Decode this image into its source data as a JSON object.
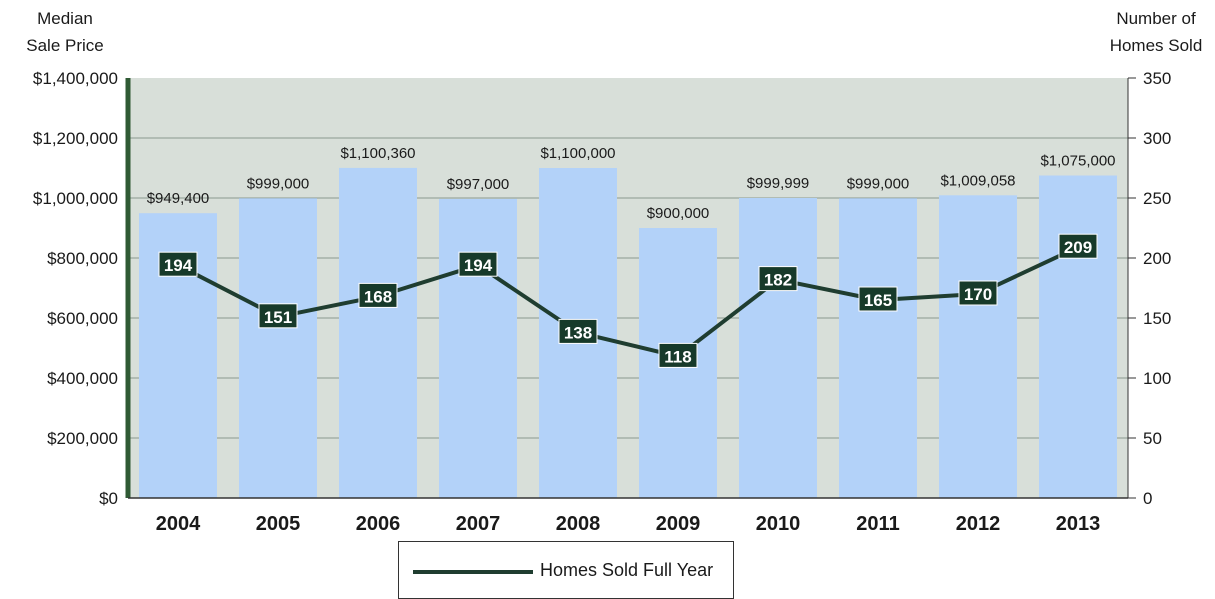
{
  "chart_data": {
    "type": "bar",
    "categories": [
      "2004",
      "2005",
      "2006",
      "2007",
      "2008",
      "2009",
      "2010",
      "2011",
      "2012",
      "2013"
    ],
    "y_left_label_line1": "Median",
    "y_left_label_line2": "Sale Price",
    "y_right_label_line1": "Number of",
    "y_right_label_line2": "Homes Sold",
    "y_left_ticks": [
      "$0",
      "$200,000",
      "$400,000",
      "$600,000",
      "$800,000",
      "$1,000,000",
      "$1,200,000",
      "$1,400,000"
    ],
    "y_right_ticks": [
      "0",
      "50",
      "100",
      "150",
      "200",
      "250",
      "300",
      "350"
    ],
    "ylim_left": [
      0,
      1400000
    ],
    "ylim_right": [
      0,
      350
    ],
    "grid": true,
    "series": [
      {
        "name": "",
        "kind": "bar",
        "axis": "left",
        "values": [
          949400,
          999000,
          1100360,
          997000,
          1100000,
          900000,
          999999,
          999000,
          1009058,
          1075000
        ],
        "labels": [
          "$949,400",
          "$999,000",
          "$1,100,360",
          "$997,000",
          "$1,100,000",
          "$900,000",
          "$999,999",
          "$999,000",
          "$1,009,058",
          "$1,075,000"
        ]
      },
      {
        "name": "Homes Sold Full Year",
        "kind": "line",
        "axis": "right",
        "values": [
          194,
          151,
          168,
          194,
          138,
          118,
          182,
          165,
          170,
          209
        ]
      }
    ],
    "legend_position": "bottom"
  },
  "colors": {
    "bar": "#b3d2f9",
    "plot_background": "#d8dfd9",
    "line": "#1f3d30",
    "label_box": "#173a2a",
    "grid": "#8a9a8f",
    "left_axis": "#2f5a34"
  }
}
